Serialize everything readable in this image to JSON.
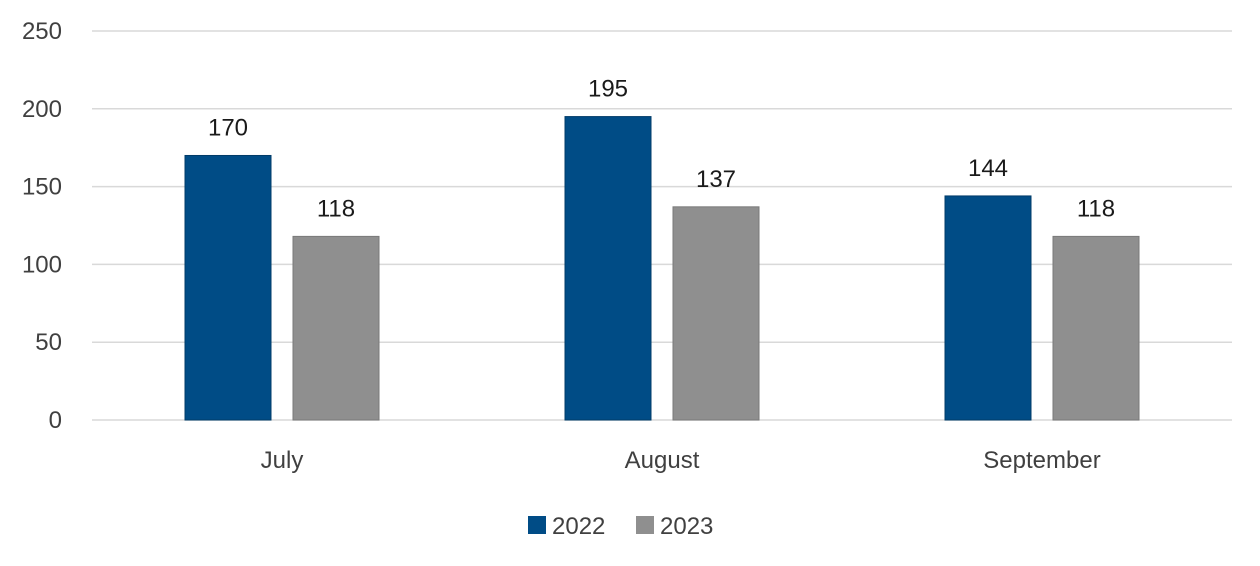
{
  "chart_data": {
    "type": "bar",
    "title": "",
    "xlabel": "",
    "ylabel": "",
    "categories": [
      "July",
      "August",
      "September"
    ],
    "series": [
      {
        "name": "2022",
        "values": [
          170,
          195,
          144
        ],
        "color": "#004c86"
      },
      {
        "name": "2023",
        "values": [
          118,
          137,
          118
        ],
        "color": "#8f8f8f"
      }
    ],
    "ylim": [
      0,
      250
    ],
    "yticks": [
      0,
      50,
      100,
      150,
      200,
      250
    ],
    "grid": true,
    "data_labels": true,
    "legend_position": "bottom"
  }
}
